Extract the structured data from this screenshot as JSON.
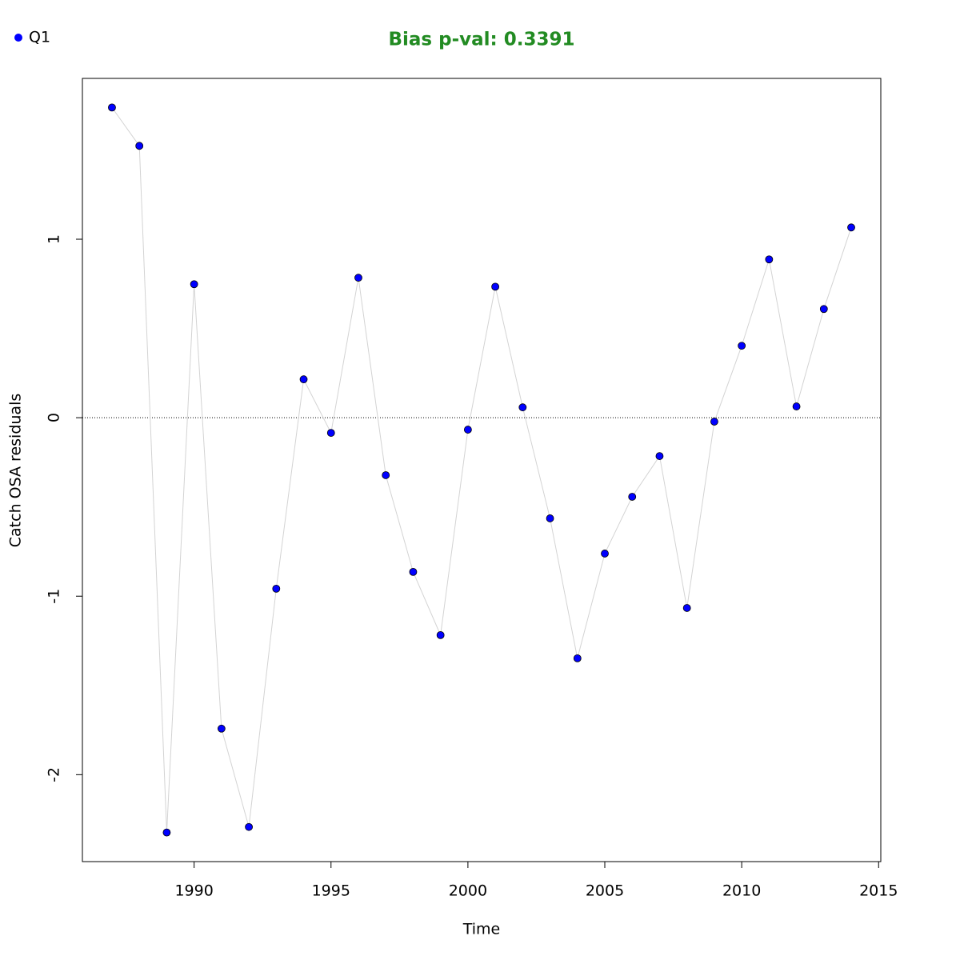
{
  "chart_data": {
    "type": "line",
    "title": "Bias p-val: 0.3391",
    "title_color": "#228b22",
    "x_label": "Time",
    "y_label": "Catch OSA residuals",
    "x": [
      1987,
      1988,
      1989,
      1990,
      1991,
      1992,
      1993,
      1994,
      1995,
      1996,
      1997,
      1998,
      1999,
      2000,
      2001,
      2002,
      2003,
      2004,
      2005,
      2006,
      2007,
      2008,
      2009,
      2010,
      2011,
      2012,
      2013,
      2014
    ],
    "series": [
      {
        "name": "Q1",
        "color": "#0000ff",
        "line_color": "#d3d3d3",
        "values": [
          1.738,
          1.523,
          -2.324,
          0.748,
          -1.742,
          -2.293,
          -0.958,
          0.215,
          -0.085,
          0.784,
          -0.322,
          -0.864,
          -1.218,
          -0.067,
          0.734,
          0.058,
          -0.564,
          -1.348,
          -0.761,
          -0.443,
          -0.215,
          -1.066,
          -0.022,
          0.403,
          0.887,
          0.063,
          0.609,
          1.066
        ]
      }
    ],
    "reference_line": 0,
    "xlim": [
      1985.92,
      2015.08
    ],
    "ylim": [
      -2.487,
      1.901
    ],
    "xticks": [
      1990,
      1995,
      2000,
      2005,
      2010,
      2015
    ],
    "yticks": [
      -2,
      -1,
      0,
      1
    ],
    "legend_position": "top-left"
  }
}
